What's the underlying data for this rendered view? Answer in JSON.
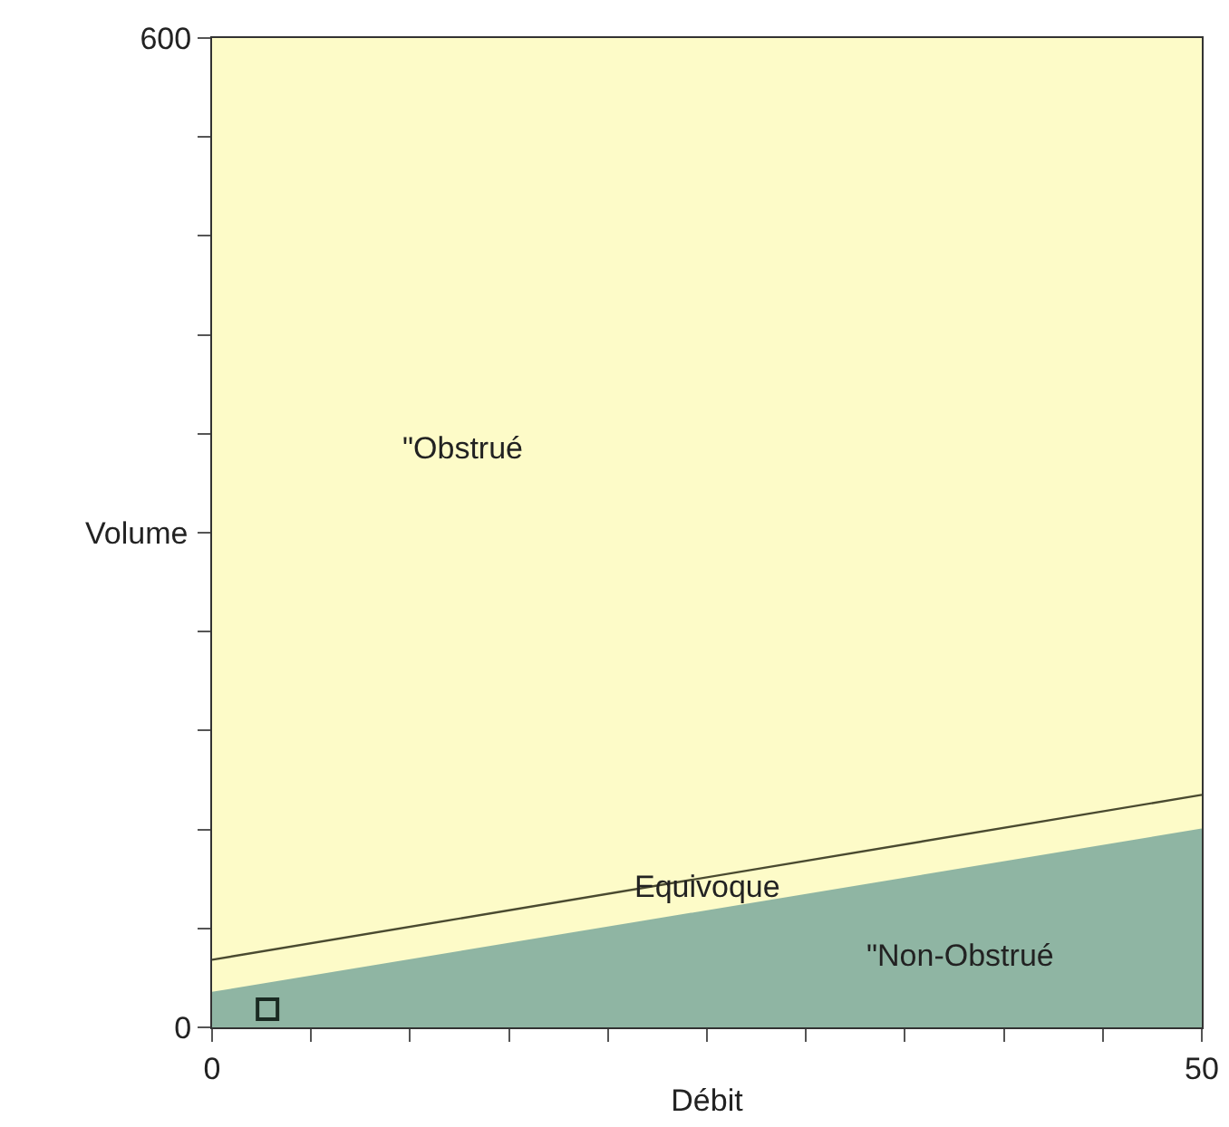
{
  "chart_data": {
    "type": "area",
    "xlabel": "Débit",
    "ylabel": "Volume",
    "xlim": [
      0,
      50
    ],
    "xticks": [
      0,
      {
        "value": 5,
        "label": null
      },
      {
        "value": 10,
        "label": null
      },
      {
        "value": 15,
        "label": null
      },
      {
        "value": 20,
        "label": null
      },
      {
        "value": 25,
        "label": null
      },
      {
        "value": 30,
        "label": null
      },
      {
        "value": 35,
        "label": null
      },
      {
        "value": 40,
        "label": null
      },
      {
        "value": 45,
        "label": null
      },
      50
    ],
    "ylim": [
      0,
      600
    ],
    "yticks": [
      0,
      {
        "value": 60,
        "label": null
      },
      {
        "value": 120,
        "label": null
      },
      {
        "value": 180,
        "label": null
      },
      {
        "value": 240,
        "label": null
      },
      {
        "value": 300,
        "label": null
      },
      {
        "value": 360,
        "label": null
      },
      {
        "value": 420,
        "label": null
      },
      {
        "value": 480,
        "label": null
      },
      {
        "value": 540,
        "label": null
      },
      600
    ],
    "grid": false,
    "bands": [
      {
        "axis": "x",
        "from": 0,
        "to": 50,
        "color": "#fdfbc8"
      }
    ],
    "series": [
      {
        "type": "area",
        "color": "#8fb5a3",
        "x": [
          0,
          50
        ],
        "values": [
          21,
          120
        ]
      },
      {
        "type": "line",
        "color": "#4a4a30",
        "x": [
          0,
          50
        ],
        "values": [
          41,
          141
        ],
        "line_style": "solid"
      },
      {
        "type": "scatter",
        "color": "#1a2a22",
        "x": [
          2.8
        ],
        "values": [
          11
        ],
        "marker": "square"
      }
    ],
    "annotations": [
      "\"Obstrué",
      "Equivoque",
      "\"Non-Obstrué"
    ]
  }
}
